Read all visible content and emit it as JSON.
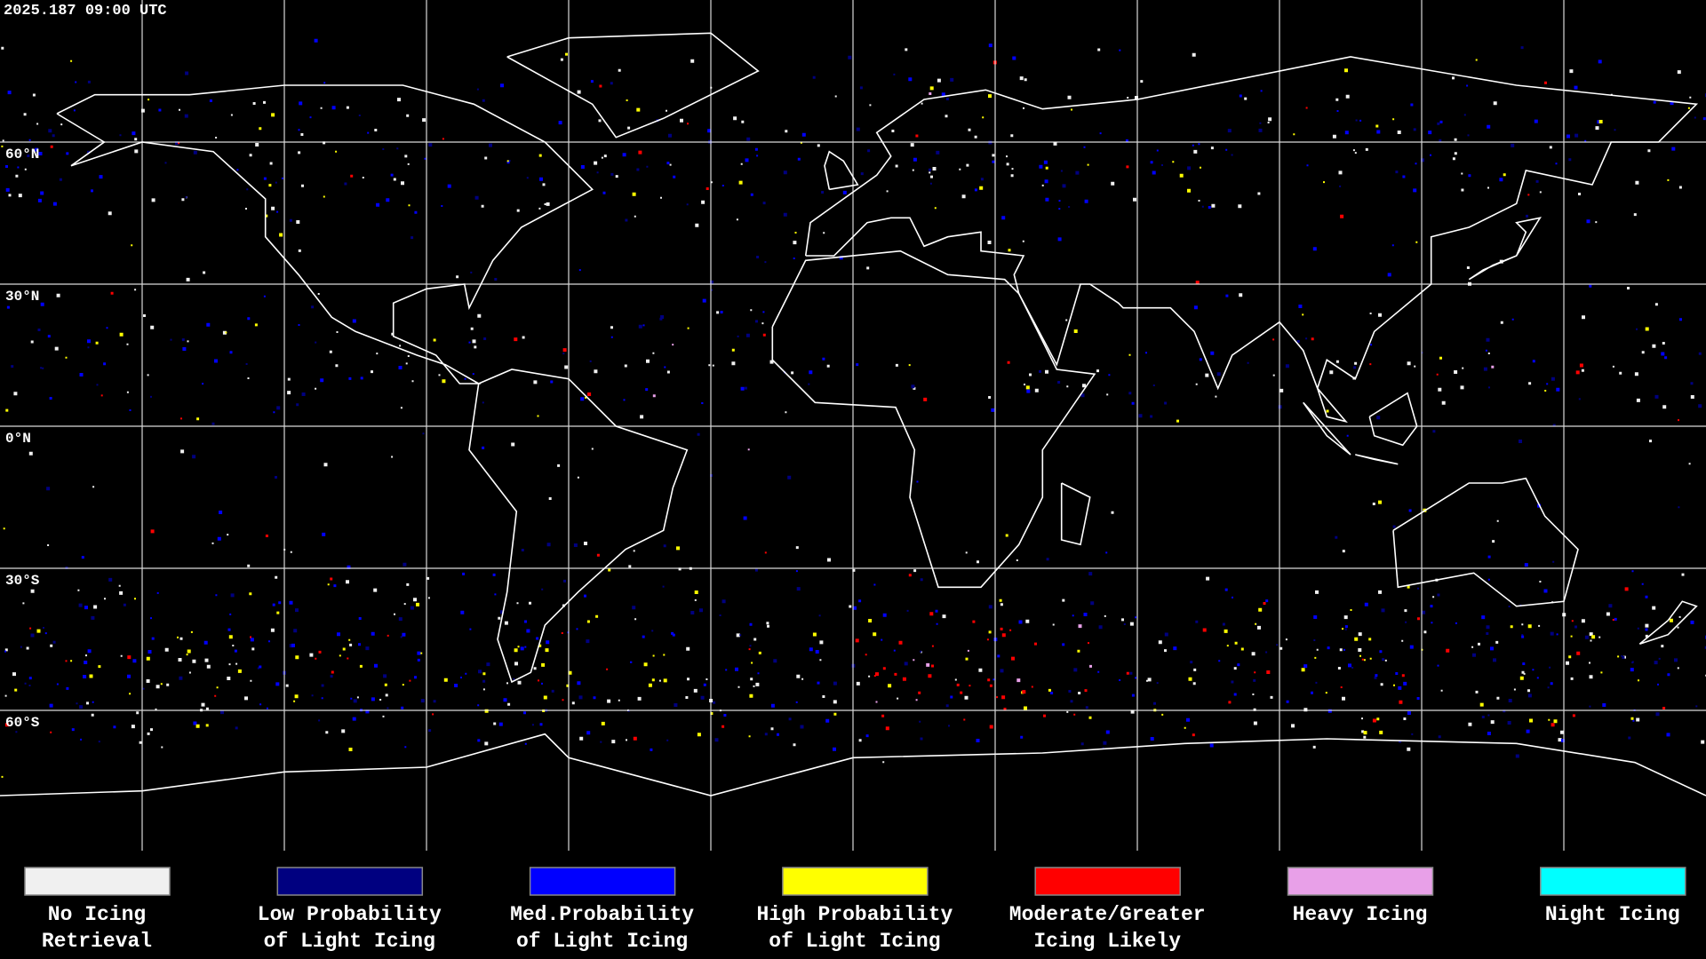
{
  "timestamp": "2025.187 09:00 UTC",
  "lat_labels": [
    "60°N",
    "30°N",
    "0°N",
    "30°S",
    "60°S"
  ],
  "legend": [
    {
      "color": "#f0f0f0",
      "label": [
        "No Icing",
        "Retrieval"
      ]
    },
    {
      "color": "#000080",
      "label": [
        "Low Probability",
        "of Light Icing"
      ]
    },
    {
      "color": "#0000ff",
      "label": [
        "Med.Probability",
        "of Light Icing"
      ]
    },
    {
      "color": "#ffff00",
      "label": [
        "High Probability",
        "of Light Icing"
      ]
    },
    {
      "color": "#ff0000",
      "label": [
        "Moderate/Greater",
        "Icing Likely"
      ]
    },
    {
      "color": "#e8a0e8",
      "label": [
        "Heavy Icing"
      ]
    },
    {
      "color": "#00ffff",
      "label": [
        "Night Icing"
      ]
    }
  ]
}
